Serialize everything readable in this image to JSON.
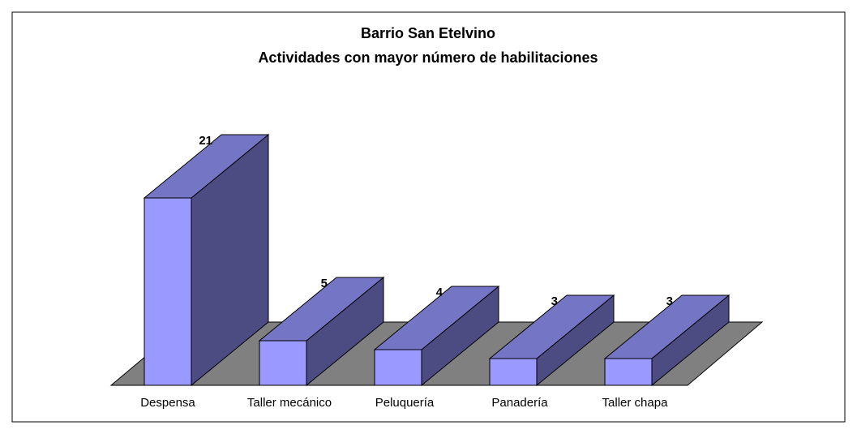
{
  "chart_data": {
    "type": "bar3d",
    "title": "Barrio San Etelvino",
    "subtitle": "Actividades con mayor número de habilitaciones",
    "categories": [
      "Despensa",
      "Taller mecánico",
      "Peluquería",
      "Panadería",
      "Taller chapa"
    ],
    "values": [
      21,
      5,
      4,
      3,
      3
    ],
    "colors": {
      "front": "#9999ff",
      "top": "#7575c6",
      "side": "#4c4c82",
      "floor": "#808080"
    }
  }
}
